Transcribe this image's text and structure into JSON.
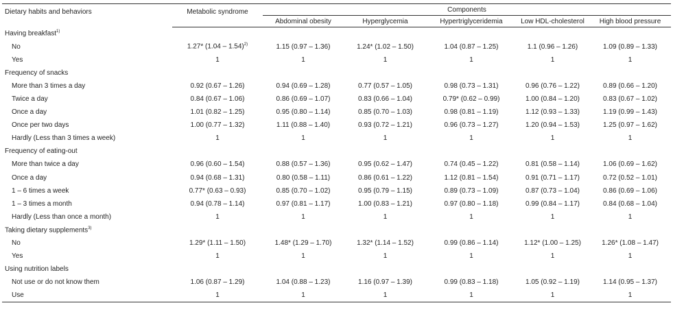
{
  "header": {
    "col_label": "Dietary habits and behaviors",
    "col_ms": "Metabolic syndrome",
    "components": "Components",
    "sub": [
      "Abdominal obesity",
      "Hyperglycemia",
      "Hypertriglyceridemia",
      "Low HDL-cholesterol",
      "High blood pressure"
    ]
  },
  "rows": [
    {
      "type": "section",
      "label": "Having breakfast",
      "sup": "1)"
    },
    {
      "type": "data",
      "label": "No",
      "ms": "1.27* (1.04 – 1.54)",
      "ms_sup": "2)",
      "v": [
        "1.15 (0.97 – 1.36)",
        "1.24* (1.02 – 1.50)",
        "1.04 (0.87 – 1.25)",
        "1.1 (0.96 – 1.26)",
        "1.09 (0.89 – 1.33)"
      ]
    },
    {
      "type": "data",
      "label": "Yes",
      "ms": "1",
      "v": [
        "1",
        "1",
        "1",
        "1",
        "1"
      ]
    },
    {
      "type": "section",
      "label": "Frequency of snacks"
    },
    {
      "type": "data",
      "label": "More than 3 times a day",
      "ms": "0.92 (0.67 – 1.26)",
      "v": [
        "0.94 (0.69 – 1.28)",
        "0.77 (0.57 – 1.05)",
        "0.98 (0.73 – 1.31)",
        "0.96 (0.76 – 1.22)",
        "0.89 (0.66 – 1.20)"
      ]
    },
    {
      "type": "data",
      "label": "Twice a day",
      "ms": "0.84 (0.67 – 1.06)",
      "v": [
        "0.86 (0.69 – 1.07)",
        "0.83 (0.66 – 1.04)",
        "0.79* (0.62 – 0.99)",
        "1.00 (0.84 – 1.20)",
        "0.83 (0.67 – 1.02)"
      ]
    },
    {
      "type": "data",
      "label": "Once a day",
      "ms": "1.01 (0.82 – 1.25)",
      "v": [
        "0.95 (0.80 – 1.14)",
        "0.85 (0.70 – 1.03)",
        "0.98 (0.81 – 1.19)",
        "1.12 (0.93 – 1.33)",
        "1.19 (0.99 – 1.43)"
      ]
    },
    {
      "type": "data",
      "label": "Once per two days",
      "ms": "1.00 (0.77 – 1.32)",
      "v": [
        "1.11 (0.88 – 1.40)",
        "0.93 (0.72 – 1.21)",
        "0.96 (0.73 – 1.27)",
        "1.20 (0.94 – 1.53)",
        "1.25 (0.97 – 1.62)"
      ]
    },
    {
      "type": "data",
      "label": "Hardly (Less than 3 times a week)",
      "ms": "1",
      "v": [
        "1",
        "1",
        "1",
        "1",
        "1"
      ]
    },
    {
      "type": "section",
      "label": "Frequency of eating-out"
    },
    {
      "type": "data",
      "label": "More than twice a day",
      "ms": "0.96 (0.60 – 1.54)",
      "v": [
        "0.88 (0.57 – 1.36)",
        "0.95 (0.62 – 1.47)",
        "0.74 (0.45 – 1.22)",
        "0.81 (0.58 – 1.14)",
        "1.06 (0.69 – 1.62)"
      ]
    },
    {
      "type": "data",
      "label": "Once a day",
      "ms": "0.94 (0.68 – 1.31)",
      "v": [
        "0.80 (0.58 – 1.11)",
        "0.86 (0.61 – 1.22)",
        "1.12 (0.81 – 1.54)",
        "0.91 (0.71 – 1.17)",
        "0.72 (0.52 – 1.01)"
      ]
    },
    {
      "type": "data",
      "label": "1 – 6 times a week",
      "ms": "0.77* (0.63 – 0.93)",
      "v": [
        "0.85 (0.70 – 1.02)",
        "0.95 (0.79 – 1.15)",
        "0.89 (0.73 – 1.09)",
        "0.87 (0.73 – 1.04)",
        "0.86 (0.69 – 1.06)"
      ]
    },
    {
      "type": "data",
      "label": "1 – 3 times a month",
      "ms": "0.94 (0.78 – 1.14)",
      "v": [
        "0.97 (0.81 – 1.17)",
        "1.00 (0.83 – 1.21)",
        "0.97 (0.80 – 1.18)",
        "0.99 (0.84 – 1.17)",
        "0.84 (0.68 – 1.04)"
      ]
    },
    {
      "type": "data",
      "label": "Hardly (Less than once a month)",
      "ms": "1",
      "v": [
        "1",
        "1",
        "1",
        "1",
        "1"
      ]
    },
    {
      "type": "section",
      "label": "Taking dietary supplements",
      "sup": "3)"
    },
    {
      "type": "data",
      "label": "No",
      "ms": "1.29* (1.11 – 1.50)",
      "v": [
        "1.48* (1.29 – 1.70)",
        "1.32* (1.14 – 1.52)",
        "0.99 (0.86 – 1.14)",
        "1.12* (1.00 – 1.25)",
        "1.26* (1.08 – 1.47)"
      ]
    },
    {
      "type": "data",
      "label": "Yes",
      "ms": "1",
      "v": [
        "1",
        "1",
        "1",
        "1",
        "1"
      ]
    },
    {
      "type": "section",
      "label": "Using nutrition labels"
    },
    {
      "type": "data",
      "label": "Not use or do not know them",
      "ms": "1.06 (0.87 – 1.29)",
      "v": [
        "1.04 (0.88 – 1.23)",
        "1.16 (0.97 – 1.39)",
        "0.99 (0.83 – 1.18)",
        "1.05 (0.92 – 1.19)",
        "1.14 (0.95 – 1.37)"
      ]
    },
    {
      "type": "data",
      "label": "Use",
      "ms": "1",
      "v": [
        "1",
        "1",
        "1",
        "1",
        "1"
      ]
    }
  ]
}
